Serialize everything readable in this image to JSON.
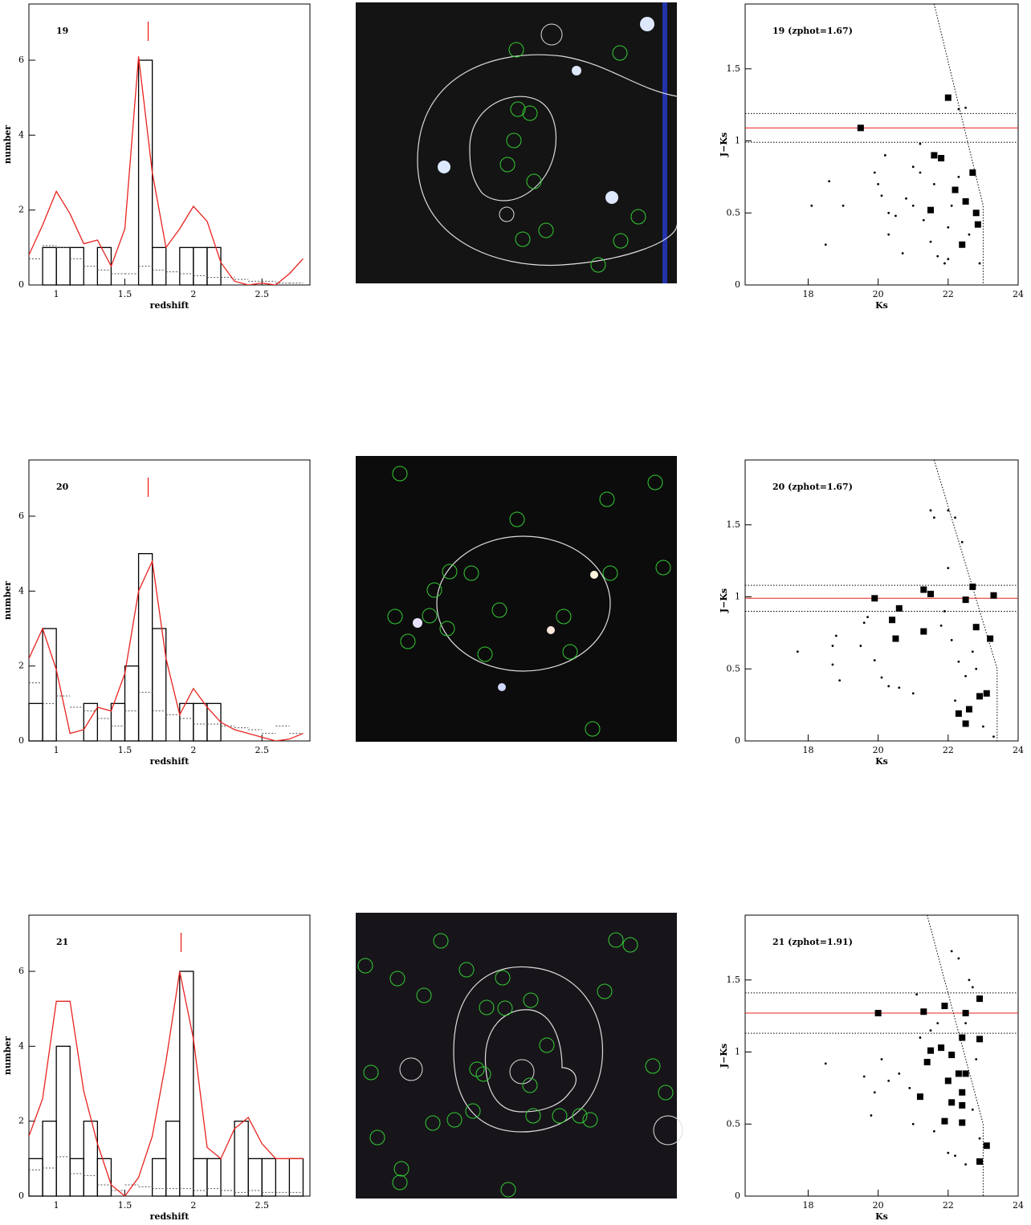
{
  "chart_data": [
    {
      "type": "histogram",
      "annotation": "19",
      "xlabel": "redshift",
      "ylabel": "number",
      "xlim": [
        0.8,
        2.85
      ],
      "ylim": [
        0,
        7.5
      ],
      "xticks": [
        1,
        1.5,
        2,
        2.5
      ],
      "yticks": [
        0,
        2,
        4,
        6
      ],
      "bins": [
        0.8,
        0.9,
        1,
        1.1,
        1.2,
        1.3,
        1.4,
        1.5,
        1.6,
        1.7,
        1.8,
        1.9,
        2,
        2.1,
        2.2,
        2.3,
        2.4,
        2.5,
        2.6,
        2.7,
        2.8
      ],
      "values": [
        0,
        1,
        1,
        1,
        0,
        1,
        0,
        0,
        6,
        1,
        0,
        1,
        1,
        1,
        0,
        0,
        0,
        0,
        0,
        0
      ],
      "color": "#000000",
      "background": [
        0.7,
        1.05,
        1.0,
        0.7,
        0.5,
        0.4,
        0.3,
        0.3,
        0.5,
        0.4,
        0.35,
        0.3,
        0.25,
        0.2,
        0.2,
        0.15,
        0.1,
        0.1,
        0.05,
        0.05
      ],
      "curve": {
        "x": [
          0.8,
          0.9,
          1,
          1.1,
          1.2,
          1.3,
          1.4,
          1.5,
          1.6,
          1.7,
          1.8,
          1.9,
          2,
          2.1,
          2.2,
          2.3,
          2.4,
          2.5,
          2.6,
          2.7,
          2.8
        ],
        "y": [
          0.8,
          1.6,
          2.5,
          1.9,
          1.1,
          1.2,
          0.5,
          1.5,
          6.1,
          3.0,
          1.0,
          1.5,
          2.1,
          1.7,
          0.6,
          0.1,
          0.0,
          0.05,
          0.0,
          0.3,
          0.7
        ]
      },
      "curve_color": "#e8231f",
      "marker": 1.67
    },
    {
      "type": "scatter",
      "annotation": "19  (zphot=1.67)",
      "xlabel": "Ks",
      "ylabel": "J−Ks",
      "xlim": [
        16.2,
        24
      ],
      "ylim": [
        0,
        1.95
      ],
      "xticks": [
        18,
        20,
        22,
        24
      ],
      "yticks": [
        0,
        0.5,
        1,
        1.5
      ],
      "series": [
        {
          "marker": "dot",
          "x": [
            18.1,
            18.5,
            18.6,
            19.0,
            19.9,
            20.0,
            20.1,
            20.2,
            20.3,
            20.5,
            20.3,
            20.7,
            21.0,
            21.2,
            21.0,
            21.3,
            21.5,
            21.7,
            21.9,
            22.0,
            22.1,
            22.3,
            22.5,
            22.3,
            22.6,
            22.9,
            21.2,
            20.8,
            21.6,
            22.0
          ],
          "y": [
            0.55,
            0.28,
            0.72,
            0.55,
            0.78,
            0.7,
            0.62,
            0.9,
            0.5,
            0.48,
            0.35,
            0.22,
            0.82,
            0.78,
            0.55,
            0.45,
            0.3,
            0.2,
            0.15,
            0.4,
            0.55,
            1.22,
            1.23,
            0.75,
            0.35,
            0.15,
            0.98,
            0.6,
            0.7,
            0.18
          ]
        },
        {
          "marker": "square",
          "x": [
            19.5,
            22.0,
            21.6,
            21.8,
            22.7,
            22.2,
            22.5,
            21.5,
            22.8,
            22.85,
            22.4
          ],
          "y": [
            1.09,
            1.3,
            0.9,
            0.88,
            0.78,
            0.66,
            0.58,
            0.52,
            0.5,
            0.42,
            0.28
          ]
        }
      ],
      "hlines": [
        {
          "value": 1.09,
          "color": "#e8231f",
          "style": "solid"
        },
        {
          "value": 0.99,
          "color": "#000000",
          "style": "dotted"
        },
        {
          "value": 1.19,
          "color": "#000000",
          "style": "dotted"
        }
      ],
      "limit_line": {
        "x": [
          21.6,
          23.0,
          23.0
        ],
        "y": [
          1.95,
          0.55,
          0
        ]
      }
    },
    {
      "type": "histogram",
      "annotation": "20",
      "xlabel": "redshift",
      "ylabel": "number",
      "xlim": [
        0.8,
        2.85
      ],
      "ylim": [
        0,
        7.5
      ],
      "xticks": [
        1,
        1.5,
        2,
        2.5
      ],
      "yticks": [
        0,
        2,
        4,
        6
      ],
      "bins": [
        0.8,
        0.9,
        1,
        1.1,
        1.2,
        1.3,
        1.4,
        1.5,
        1.6,
        1.7,
        1.8,
        1.9,
        2,
        2.1,
        2.2,
        2.3,
        2.4,
        2.5,
        2.6,
        2.7,
        2.8
      ],
      "values": [
        1,
        3,
        0,
        0,
        1,
        0,
        1,
        2,
        5,
        3,
        0,
        1,
        1,
        1,
        0,
        0,
        0,
        0,
        0,
        0
      ],
      "color": "#000000",
      "background": [
        1.55,
        1.0,
        1.2,
        0.9,
        0.8,
        0.6,
        0.4,
        0.8,
        1.3,
        0.8,
        0.7,
        0.6,
        0.45,
        0.45,
        0.4,
        0.35,
        0.3,
        0.2,
        0.4,
        0.2
      ],
      "curve": {
        "x": [
          0.8,
          0.9,
          1,
          1.1,
          1.2,
          1.3,
          1.4,
          1.5,
          1.6,
          1.7,
          1.8,
          1.9,
          2,
          2.1,
          2.2,
          2.3,
          2.4,
          2.5,
          2.6,
          2.7,
          2.8
        ],
        "y": [
          2.2,
          3.0,
          1.9,
          0.2,
          0.3,
          0.9,
          0.8,
          1.8,
          4.0,
          4.8,
          2.2,
          0.7,
          1.4,
          0.9,
          0.5,
          0.3,
          0.2,
          0.1,
          0.0,
          0.05,
          0.2
        ]
      },
      "curve_color": "#e8231f",
      "marker": 1.67
    },
    {
      "type": "scatter",
      "annotation": "20  (zphot=1.67)",
      "xlabel": "Ks",
      "ylabel": "J−Ks",
      "xlim": [
        16.2,
        24
      ],
      "ylim": [
        0,
        1.95
      ],
      "xticks": [
        18,
        20,
        22,
        24
      ],
      "yticks": [
        0,
        0.5,
        1,
        1.5
      ],
      "series": [
        {
          "marker": "dot",
          "x": [
            17.7,
            18.7,
            18.8,
            18.9,
            18.7,
            19.6,
            19.7,
            19.5,
            19.9,
            20.1,
            20.3,
            20.6,
            21.0,
            21.5,
            21.6,
            22.0,
            22.2,
            22.4,
            22.0,
            21.9,
            22.1,
            22.3,
            22.5,
            22.8,
            23.0,
            23.3,
            21.8,
            22.2,
            22.7
          ],
          "y": [
            0.62,
            0.66,
            0.73,
            0.42,
            0.53,
            0.82,
            0.86,
            0.66,
            0.56,
            0.44,
            0.38,
            0.37,
            0.33,
            1.6,
            1.55,
            1.6,
            1.55,
            1.38,
            1.2,
            0.9,
            0.7,
            0.55,
            0.45,
            0.5,
            0.1,
            0.03,
            0.8,
            0.28,
            0.62
          ]
        },
        {
          "marker": "square",
          "x": [
            19.9,
            21.3,
            21.5,
            22.7,
            22.5,
            23.3,
            20.6,
            20.4,
            21.3,
            20.5,
            22.8,
            23.2,
            23.1,
            22.9,
            22.6,
            22.3,
            22.5
          ],
          "y": [
            0.99,
            1.05,
            1.02,
            1.07,
            0.98,
            1.01,
            0.92,
            0.84,
            0.76,
            0.71,
            0.79,
            0.71,
            0.33,
            0.31,
            0.22,
            0.19,
            0.12
          ]
        }
      ],
      "hlines": [
        {
          "value": 0.99,
          "color": "#e8231f",
          "style": "solid"
        },
        {
          "value": 0.9,
          "color": "#000000",
          "style": "dotted"
        },
        {
          "value": 1.08,
          "color": "#000000",
          "style": "dotted"
        }
      ],
      "limit_line": {
        "x": [
          21.6,
          23.4,
          23.4
        ],
        "y": [
          1.95,
          0.5,
          0
        ]
      }
    },
    {
      "type": "histogram",
      "annotation": "21",
      "xlabel": "redshift",
      "ylabel": "number",
      "xlim": [
        0.8,
        2.85
      ],
      "ylim": [
        0,
        7.5
      ],
      "xticks": [
        1,
        1.5,
        2,
        2.5
      ],
      "yticks": [
        0,
        2,
        4,
        6
      ],
      "bins": [
        0.8,
        0.9,
        1,
        1.1,
        1.2,
        1.3,
        1.4,
        1.5,
        1.6,
        1.7,
        1.8,
        1.9,
        2,
        2.1,
        2.2,
        2.3,
        2.4,
        2.5,
        2.6,
        2.7,
        2.8
      ],
      "values": [
        1,
        2,
        4,
        1,
        2,
        1,
        0,
        0,
        0,
        1,
        2,
        6,
        1,
        1,
        0,
        2,
        1,
        1,
        0,
        1
      ],
      "color": "#000000",
      "background": [
        0.7,
        0.75,
        1.05,
        0.6,
        0.55,
        0.3,
        0.15,
        0.3,
        0.25,
        0.2,
        0.2,
        0.2,
        0.15,
        0.2,
        0.15,
        0.1,
        0.15,
        0.1,
        0.1,
        0.1
      ],
      "curve": {
        "x": [
          0.8,
          0.9,
          1,
          1.1,
          1.2,
          1.3,
          1.4,
          1.5,
          1.6,
          1.7,
          1.8,
          1.9,
          2,
          2.1,
          2.2,
          2.3,
          2.4,
          2.5,
          2.6,
          2.7,
          2.8
        ],
        "y": [
          1.6,
          2.6,
          5.2,
          5.2,
          2.8,
          1.4,
          0.3,
          0.0,
          0.5,
          1.6,
          3.6,
          6.0,
          4.2,
          1.3,
          1.0,
          1.8,
          2.1,
          1.4,
          1.0,
          1.0,
          1.0
        ]
      },
      "curve_color": "#e8231f",
      "marker": 1.91
    },
    {
      "type": "scatter",
      "annotation": "21  (zphot=1.91)",
      "xlabel": "Ks",
      "ylabel": "J−Ks",
      "xlim": [
        16.2,
        24
      ],
      "ylim": [
        0,
        1.95
      ],
      "xticks": [
        18,
        20,
        22,
        24
      ],
      "yticks": [
        0,
        0.5,
        1,
        1.5
      ],
      "series": [
        {
          "marker": "dot",
          "x": [
            18.5,
            19.6,
            19.8,
            19.9,
            20.1,
            20.3,
            20.6,
            20.9,
            21.0,
            21.1,
            21.2,
            21.5,
            21.7,
            22.1,
            22.3,
            22.5,
            22.6,
            22.7,
            22.8,
            22.7,
            22.2,
            22.5,
            22.9,
            21.6,
            22.0
          ],
          "y": [
            0.92,
            0.83,
            0.56,
            0.72,
            0.95,
            0.8,
            0.85,
            0.75,
            0.5,
            1.4,
            1.1,
            1.15,
            1.2,
            1.7,
            1.65,
            1.2,
            1.5,
            1.45,
            0.95,
            0.6,
            0.28,
            0.22,
            0.4,
            0.45,
            0.3
          ]
        },
        {
          "marker": "square",
          "x": [
            20.0,
            21.3,
            21.9,
            22.5,
            22.9,
            22.4,
            22.9,
            21.5,
            21.8,
            22.1,
            21.4,
            22.3,
            22.5,
            22.0,
            22.4,
            21.2,
            22.1,
            22.4,
            21.9,
            22.4,
            23.1,
            22.9
          ],
          "y": [
            1.27,
            1.28,
            1.32,
            1.27,
            1.37,
            1.1,
            1.09,
            1.01,
            1.03,
            0.98,
            0.93,
            0.85,
            0.85,
            0.8,
            0.72,
            0.69,
            0.65,
            0.63,
            0.52,
            0.51,
            0.35,
            0.24
          ]
        }
      ],
      "hlines": [
        {
          "value": 1.27,
          "color": "#e8231f",
          "style": "solid"
        },
        {
          "value": 1.13,
          "color": "#000000",
          "style": "dotted"
        },
        {
          "value": 1.41,
          "color": "#000000",
          "style": "dotted"
        }
      ],
      "limit_line": {
        "x": [
          21.4,
          23.0,
          23.0
        ],
        "y": [
          1.95,
          0.5,
          0
        ]
      }
    }
  ]
}
